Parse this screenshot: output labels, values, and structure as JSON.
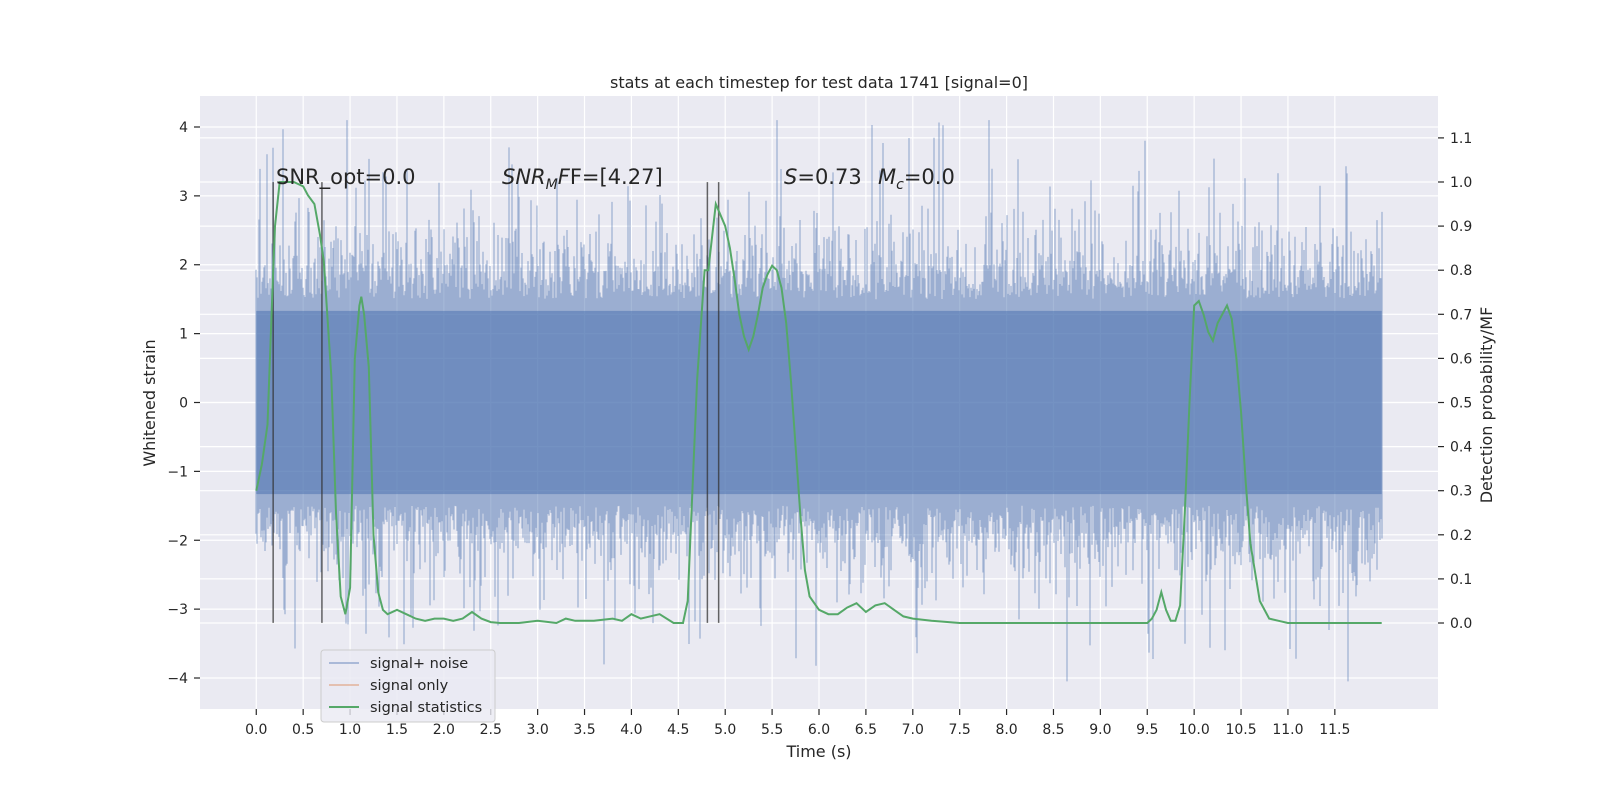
{
  "chart_data": {
    "type": "line",
    "title": "stats at each timestep for test data 1741 [signal=0]",
    "xlabel": "Time (s)",
    "ylabel_left": "Whitened strain",
    "ylabel_right": "Detection probability/MF",
    "xlim": [
      -0.6,
      12.6
    ],
    "ylim_left": [
      -4.45,
      4.45
    ],
    "ylim_right": [
      -0.195,
      1.195
    ],
    "grid": true,
    "x_ticks": [
      0.0,
      0.5,
      1.0,
      1.5,
      2.0,
      2.5,
      3.0,
      3.5,
      4.0,
      4.5,
      5.0,
      5.5,
      6.0,
      6.5,
      7.0,
      7.5,
      8.0,
      8.5,
      9.0,
      9.5,
      10.0,
      10.5,
      11.0,
      11.5
    ],
    "x_tick_labels": [
      "0.0",
      "0.5",
      "1.0",
      "1.5",
      "2.0",
      "2.5",
      "3.0",
      "3.5",
      "4.0",
      "4.5",
      "5.0",
      "5.5",
      "6.0",
      "6.5",
      "7.0",
      "7.5",
      "8.0",
      "8.5",
      "9.0",
      "9.5",
      "10.0",
      "10.5",
      "11.0",
      "11.5"
    ],
    "y_ticks_left": [
      -4,
      -3,
      -2,
      -1,
      0,
      1,
      2,
      3,
      4
    ],
    "y_tick_labels_left": [
      "−4",
      "−3",
      "−2",
      "−1",
      "0",
      "1",
      "2",
      "3",
      "4"
    ],
    "y_ticks_right": [
      0.0,
      0.1,
      0.2,
      0.3,
      0.4,
      0.5,
      0.6,
      0.7,
      0.8,
      0.9,
      1.0,
      1.1
    ],
    "y_tick_labels_right": [
      "0.0",
      "0.1",
      "0.2",
      "0.3",
      "0.4",
      "0.5",
      "0.6",
      "0.7",
      "0.8",
      "0.9",
      "1.0",
      "1.1"
    ],
    "series": [
      {
        "name": "signal+ noise",
        "axis": "left",
        "color": "#4c72b0",
        "kind": "dense-noise",
        "x_range": [
          0.0,
          12.0
        ],
        "envelope": {
          "typical_max": 1.9,
          "typical_min": -1.9,
          "peak_max": 4.1,
          "peak_min": -4.05
        }
      },
      {
        "name": "signal only",
        "axis": "left",
        "color": "#dd8452",
        "x": [],
        "y": []
      },
      {
        "name": "signal statistics",
        "axis": "right",
        "color": "#55a868",
        "x": [
          0.0,
          0.06,
          0.12,
          0.18,
          0.2,
          0.25,
          0.3,
          0.4,
          0.5,
          0.55,
          0.62,
          0.68,
          0.72,
          0.8,
          0.85,
          0.9,
          0.95,
          1.0,
          1.05,
          1.1,
          1.12,
          1.15,
          1.2,
          1.25,
          1.3,
          1.35,
          1.4,
          1.5,
          1.6,
          1.7,
          1.8,
          1.9,
          2.0,
          2.1,
          2.2,
          2.3,
          2.4,
          2.5,
          2.6,
          2.8,
          3.0,
          3.2,
          3.3,
          3.4,
          3.6,
          3.8,
          3.9,
          4.0,
          4.1,
          4.3,
          4.45,
          4.55,
          4.6,
          4.7,
          4.78,
          4.82,
          4.9,
          5.0,
          5.05,
          5.1,
          5.15,
          5.2,
          5.25,
          5.3,
          5.35,
          5.4,
          5.45,
          5.5,
          5.55,
          5.6,
          5.65,
          5.7,
          5.75,
          5.8,
          5.85,
          5.9,
          6.0,
          6.1,
          6.2,
          6.3,
          6.4,
          6.5,
          6.6,
          6.7,
          6.8,
          6.9,
          7.0,
          7.2,
          7.5,
          8.0,
          8.5,
          9.0,
          9.5,
          9.55,
          9.6,
          9.65,
          9.7,
          9.75,
          9.8,
          9.85,
          9.9,
          9.95,
          10.0,
          10.05,
          10.1,
          10.15,
          10.2,
          10.25,
          10.3,
          10.35,
          10.4,
          10.45,
          10.5,
          10.55,
          10.6,
          10.7,
          10.8,
          10.9,
          11.0,
          11.5,
          12.0
        ],
        "y": [
          0.3,
          0.36,
          0.45,
          0.8,
          0.9,
          1.0,
          1.0,
          1.0,
          0.99,
          0.97,
          0.95,
          0.88,
          0.82,
          0.56,
          0.25,
          0.06,
          0.02,
          0.08,
          0.6,
          0.72,
          0.74,
          0.7,
          0.58,
          0.2,
          0.07,
          0.03,
          0.02,
          0.03,
          0.02,
          0.01,
          0.005,
          0.01,
          0.01,
          0.005,
          0.01,
          0.025,
          0.01,
          0.002,
          0.0,
          0.0,
          0.005,
          0.0,
          0.01,
          0.005,
          0.005,
          0.01,
          0.005,
          0.02,
          0.01,
          0.02,
          0.0,
          0.0,
          0.05,
          0.55,
          0.8,
          0.8,
          0.95,
          0.9,
          0.85,
          0.78,
          0.7,
          0.65,
          0.62,
          0.65,
          0.7,
          0.76,
          0.79,
          0.81,
          0.8,
          0.76,
          0.68,
          0.55,
          0.4,
          0.25,
          0.12,
          0.06,
          0.03,
          0.02,
          0.02,
          0.035,
          0.045,
          0.025,
          0.04,
          0.045,
          0.03,
          0.015,
          0.01,
          0.005,
          0.0,
          0.0,
          0.0,
          0.0,
          0.0,
          0.01,
          0.03,
          0.07,
          0.03,
          0.005,
          0.005,
          0.04,
          0.25,
          0.5,
          0.72,
          0.73,
          0.7,
          0.66,
          0.64,
          0.68,
          0.7,
          0.72,
          0.69,
          0.6,
          0.48,
          0.32,
          0.18,
          0.05,
          0.01,
          0.005,
          0.0,
          0.0,
          0.0
        ]
      }
    ],
    "vertical_markers": [
      0.18,
      0.7,
      4.81,
      4.93
    ],
    "vertical_marker_range": [
      -3.2,
      3.2
    ],
    "legend_position": "lower-left",
    "annotations": [
      {
        "base": "SNR_opt=0.0",
        "sub": ""
      },
      {
        "base": "SNR",
        "sub": "M",
        "tail": "F=[4.27]"
      },
      {
        "base": "S",
        "sub": "",
        "tail": "=0.73"
      },
      {
        "base": "M",
        "sub": "c",
        "tail": "=0.0"
      }
    ]
  }
}
